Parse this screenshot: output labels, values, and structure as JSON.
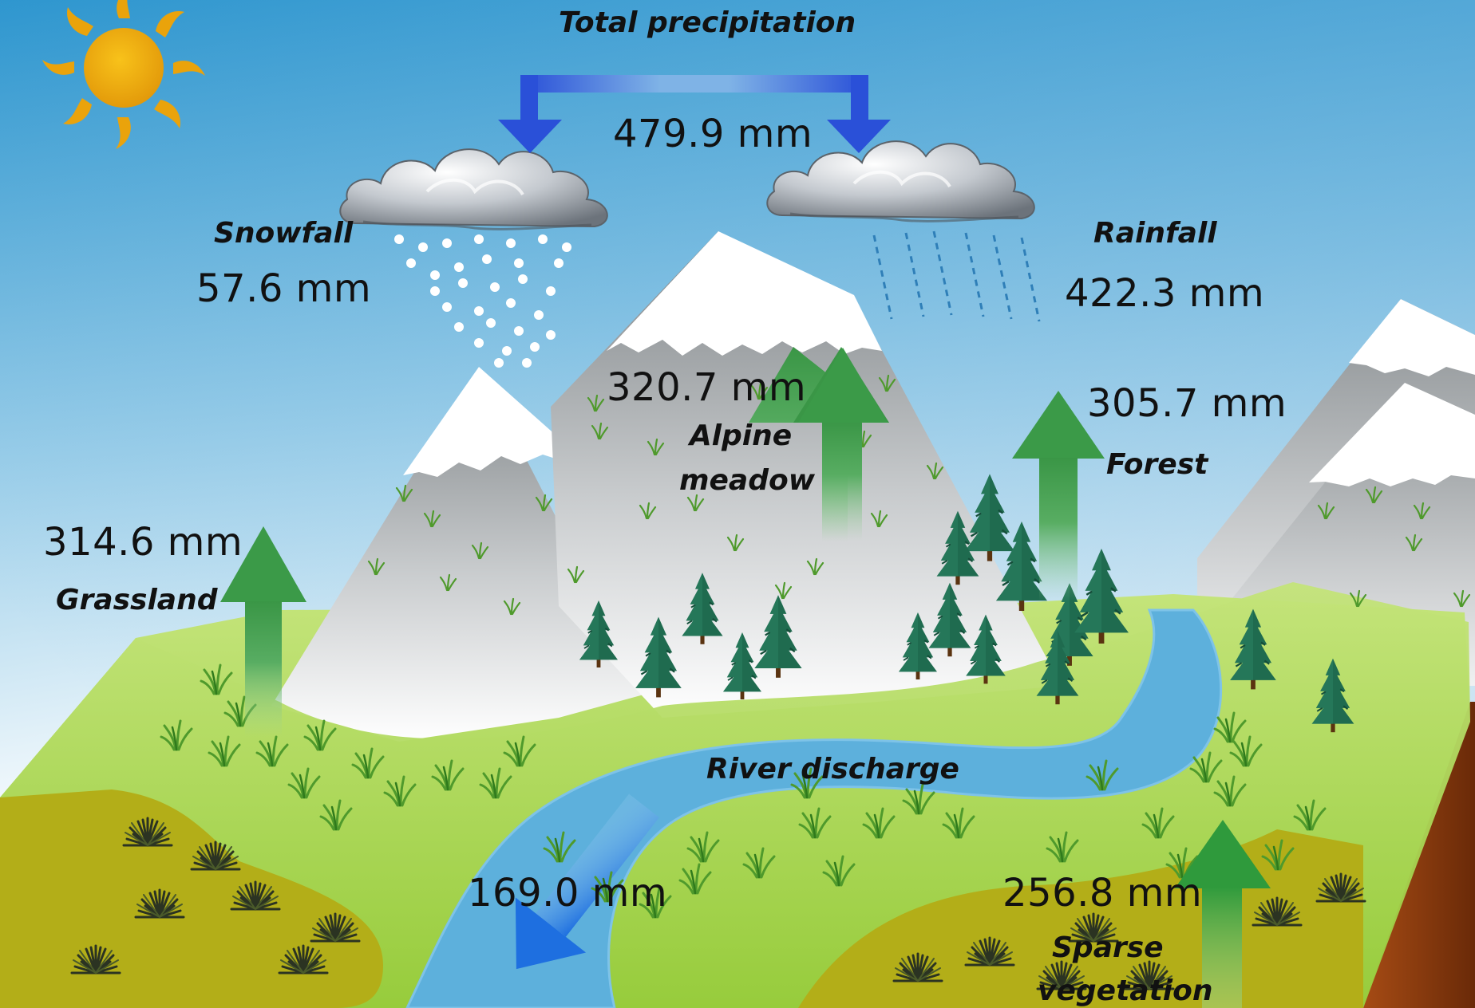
{
  "title": "Total precipitation",
  "total_precipitation": "479.9 mm",
  "snowfall": {
    "label": "Snowfall",
    "value": "57.6 mm"
  },
  "rainfall": {
    "label": "Rainfall",
    "value": "422.3 mm"
  },
  "alpine_meadow": {
    "label_line1": "Alpine",
    "label_line2": "meadow",
    "value": "320.7 mm"
  },
  "forest": {
    "label": "Forest",
    "value": "305.7 mm"
  },
  "grassland": {
    "label": "Grassland",
    "value": "314.6 mm"
  },
  "river_discharge": {
    "label": "River discharge",
    "value": "169.0 mm"
  },
  "sparse_vegetation": {
    "label_line1": "Sparse",
    "label_line2": "vegetation",
    "value": "256.8 mm"
  },
  "colors": {
    "sky_top": "#3a9fd0",
    "sky_bottom": "#ffffff",
    "precip_arrow": "#2a4fd6",
    "et_arrow": "#3c9a48",
    "river": "#5db0dc",
    "grass": "#a9d94f",
    "sparse_ground": "#b4b020",
    "soil": "#8a3a10",
    "snow": "#ffffff",
    "rock": "#8e9396",
    "sun": "#f2a90d"
  },
  "icons": [
    "sun-icon",
    "cloud-icon",
    "snowflake-dots",
    "rain-drops",
    "pine-tree-icon",
    "grass-tuft-icon",
    "shrub-icon",
    "mountain-icon"
  ]
}
